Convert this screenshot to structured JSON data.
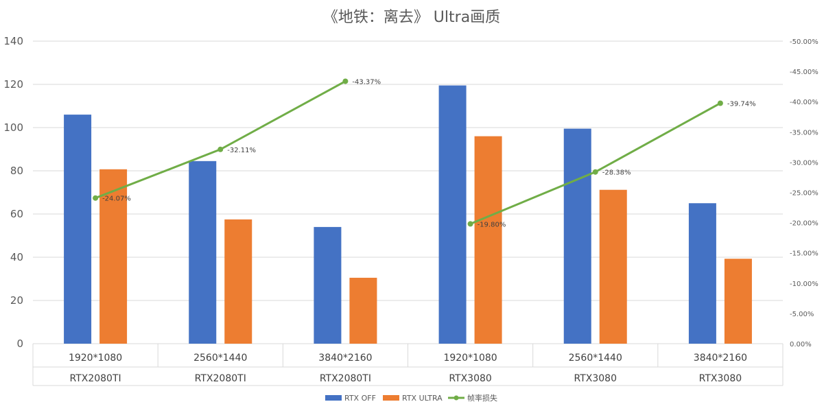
{
  "chart_data": {
    "type": "bar",
    "title": "《地铁：离去》 Ultra画质",
    "categories": [
      {
        "resolution": "1920*1080",
        "gpu": "RTX2080TI"
      },
      {
        "resolution": "2560*1440",
        "gpu": "RTX2080TI"
      },
      {
        "resolution": "3840*2160",
        "gpu": "RTX2080TI"
      },
      {
        "resolution": "1920*1080",
        "gpu": "RTX3080"
      },
      {
        "resolution": "2560*1440",
        "gpu": "RTX3080"
      },
      {
        "resolution": "3840*2160",
        "gpu": "RTX3080"
      }
    ],
    "series": [
      {
        "name": "RTX OFF",
        "type": "bar",
        "axis": "left",
        "color": "#4472C4",
        "values": [
          106,
          84.5,
          54,
          119.5,
          99.5,
          65
        ]
      },
      {
        "name": "RTX ULTRA",
        "type": "bar",
        "axis": "left",
        "color": "#ED7D31",
        "values": [
          80.7,
          57.5,
          30.5,
          96,
          71.2,
          39.3
        ]
      },
      {
        "name": "帧率损失",
        "type": "line",
        "axis": "right",
        "color": "#70AD47",
        "values": [
          -24.07,
          -32.11,
          -43.37,
          -19.8,
          -28.38,
          -39.74
        ],
        "labels": [
          "-24.07%",
          "-32.11%",
          "-43.37%",
          "-19.80%",
          "-28.38%",
          "-39.74%"
        ]
      }
    ],
    "y_left": {
      "min": 0,
      "max": 140,
      "ticks": [
        "0",
        "20",
        "40",
        "60",
        "80",
        "100",
        "120",
        "140"
      ]
    },
    "y_right": {
      "min": 0,
      "max": -50,
      "ticks": [
        "0.00%",
        "-5.00%",
        "-10.00%",
        "-15.00%",
        "-20.00%",
        "-25.00%",
        "-30.00%",
        "-35.00%",
        "-40.00%",
        "-45.00%",
        "-50.00%"
      ]
    },
    "grid": true,
    "legend_position": "bottom"
  }
}
